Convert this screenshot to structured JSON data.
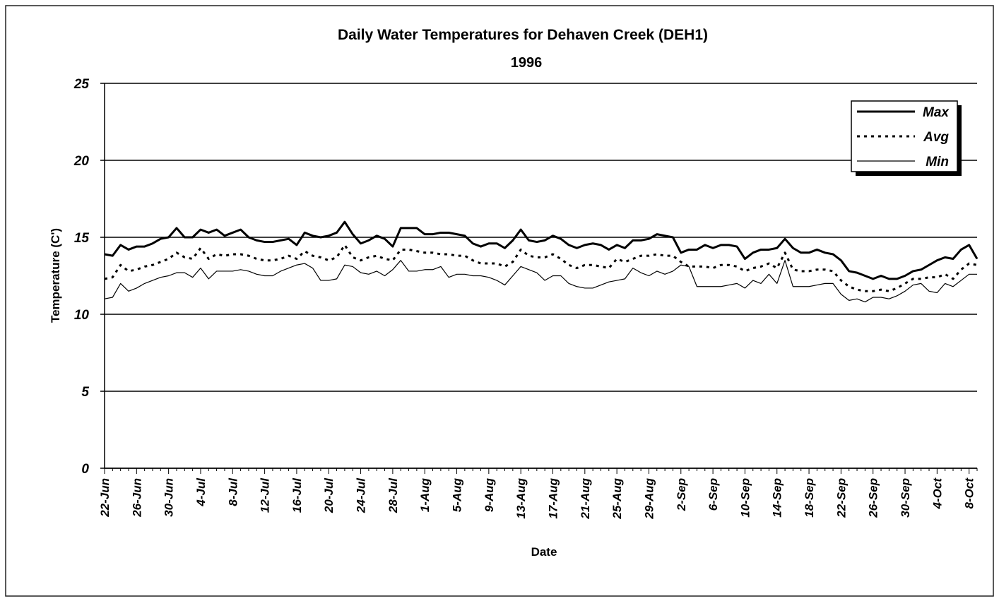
{
  "chart_data": {
    "type": "line",
    "title": "Daily Water Temperatures for Dehaven Creek (DEH1)",
    "subtitle": "1996",
    "x_label": "Date",
    "y_label": "Temperature (C')",
    "categories": [
      "22-Jun",
      null,
      null,
      null,
      "26-Jun",
      null,
      null,
      null,
      "30-Jun",
      null,
      null,
      null,
      "4-Jul",
      null,
      null,
      null,
      "8-Jul",
      null,
      null,
      null,
      "12-Jul",
      null,
      null,
      null,
      "16-Jul",
      null,
      null,
      null,
      "20-Jul",
      null,
      null,
      null,
      "24-Jul",
      null,
      null,
      null,
      "28-Jul",
      null,
      null,
      null,
      "1-Aug",
      null,
      null,
      null,
      "5-Aug",
      null,
      null,
      null,
      "9-Aug",
      null,
      null,
      null,
      "13-Aug",
      null,
      null,
      null,
      "17-Aug",
      null,
      null,
      null,
      "21-Aug",
      null,
      null,
      null,
      "25-Aug",
      null,
      null,
      null,
      "29-Aug",
      null,
      null,
      null,
      "2-Sep",
      null,
      null,
      null,
      "6-Sep",
      null,
      null,
      null,
      "10-Sep",
      null,
      null,
      null,
      "14-Sep",
      null,
      null,
      null,
      "18-Sep",
      null,
      null,
      null,
      "22-Sep",
      null,
      null,
      null,
      "26-Sep",
      null,
      null,
      null,
      "30-Sep",
      null,
      null,
      null,
      "4-Oct",
      null,
      null,
      null,
      "8-Oct",
      null
    ],
    "series": [
      {
        "name": "Max",
        "color": "#000000",
        "line_style": "solid",
        "line_width": 3,
        "values": [
          13.9,
          13.8,
          14.5,
          14.2,
          14.4,
          14.4,
          14.6,
          14.9,
          15.0,
          15.6,
          15.0,
          15.0,
          15.5,
          15.3,
          15.5,
          15.1,
          15.3,
          15.5,
          15.0,
          14.8,
          14.7,
          14.7,
          14.8,
          14.9,
          14.5,
          15.3,
          15.1,
          15.0,
          15.1,
          15.3,
          16.0,
          15.2,
          14.6,
          14.8,
          15.1,
          14.9,
          14.4,
          15.6,
          15.6,
          15.6,
          15.2,
          15.2,
          15.3,
          15.3,
          15.2,
          15.1,
          14.6,
          14.4,
          14.6,
          14.6,
          14.3,
          14.8,
          15.5,
          14.8,
          14.7,
          14.8,
          15.1,
          14.9,
          14.5,
          14.3,
          14.5,
          14.6,
          14.5,
          14.2,
          14.5,
          14.3,
          14.8,
          14.8,
          14.9,
          15.2,
          15.1,
          15.0,
          14.0,
          14.2,
          14.2,
          14.5,
          14.3,
          14.5,
          14.5,
          14.4,
          13.6,
          14.0,
          14.2,
          14.2,
          14.3,
          14.9,
          14.3,
          14.0,
          14.0,
          14.2,
          14.0,
          13.9,
          13.5,
          12.8,
          12.7,
          12.5,
          12.3,
          12.5,
          12.3,
          12.3,
          12.5,
          12.8,
          12.9,
          13.2,
          13.5,
          13.7,
          13.6,
          14.2,
          14.5,
          13.6
        ]
      },
      {
        "name": "Avg",
        "color": "#000000",
        "line_style": "dotted",
        "line_width": 3,
        "values": [
          12.3,
          12.4,
          13.2,
          12.8,
          12.9,
          13.1,
          13.2,
          13.4,
          13.6,
          14.0,
          13.7,
          13.6,
          14.3,
          13.6,
          13.9,
          13.8,
          13.9,
          13.9,
          13.8,
          13.6,
          13.5,
          13.5,
          13.6,
          13.8,
          13.6,
          14.1,
          13.8,
          13.7,
          13.5,
          13.7,
          14.5,
          13.7,
          13.5,
          13.7,
          13.8,
          13.6,
          13.5,
          14.2,
          14.2,
          14.1,
          14.0,
          14.0,
          13.9,
          13.9,
          13.8,
          13.8,
          13.5,
          13.3,
          13.3,
          13.3,
          13.1,
          13.4,
          14.2,
          13.8,
          13.7,
          13.7,
          13.9,
          13.6,
          13.2,
          13.0,
          13.2,
          13.2,
          13.1,
          13.0,
          13.6,
          13.4,
          13.6,
          13.8,
          13.8,
          13.9,
          13.8,
          13.8,
          13.4,
          13.1,
          13.1,
          13.1,
          13.0,
          13.2,
          13.2,
          13.1,
          12.8,
          13.0,
          13.1,
          13.3,
          13.0,
          14.0,
          12.9,
          12.8,
          12.8,
          12.9,
          12.9,
          12.8,
          12.2,
          11.8,
          11.6,
          11.5,
          11.5,
          11.6,
          11.5,
          11.7,
          12.0,
          12.3,
          12.3,
          12.4,
          12.4,
          12.6,
          12.3,
          12.9,
          13.3,
          13.2
        ]
      },
      {
        "name": "Min",
        "color": "#000000",
        "line_style": "solid",
        "line_width": 1.2,
        "values": [
          11.0,
          11.1,
          12.0,
          11.5,
          11.7,
          12.0,
          12.2,
          12.4,
          12.5,
          12.7,
          12.7,
          12.4,
          13.0,
          12.3,
          12.8,
          12.8,
          12.8,
          12.9,
          12.8,
          12.6,
          12.5,
          12.5,
          12.8,
          13.0,
          13.2,
          13.3,
          13.0,
          12.2,
          12.2,
          12.3,
          13.2,
          13.1,
          12.7,
          12.6,
          12.8,
          12.5,
          12.9,
          13.5,
          12.8,
          12.8,
          12.9,
          12.9,
          13.1,
          12.4,
          12.6,
          12.6,
          12.5,
          12.5,
          12.4,
          12.2,
          11.9,
          12.5,
          13.1,
          12.9,
          12.7,
          12.2,
          12.5,
          12.5,
          12.0,
          11.8,
          11.7,
          11.7,
          11.9,
          12.1,
          12.2,
          12.3,
          13.0,
          12.7,
          12.5,
          12.8,
          12.6,
          12.8,
          13.2,
          13.1,
          11.8,
          11.8,
          11.8,
          11.8,
          11.9,
          12.0,
          11.7,
          12.2,
          12.0,
          12.6,
          12.0,
          13.5,
          11.8,
          11.8,
          11.8,
          11.9,
          12.0,
          12.0,
          11.3,
          10.9,
          11.0,
          10.8,
          11.1,
          11.1,
          11.0,
          11.2,
          11.5,
          11.9,
          12.0,
          11.5,
          11.4,
          12.0,
          11.8,
          12.2,
          12.6,
          12.6
        ]
      }
    ],
    "ylim": [
      0,
      25
    ],
    "yticks": [
      0,
      5,
      10,
      15,
      20,
      25
    ],
    "grid": true,
    "legend": "upper right"
  }
}
